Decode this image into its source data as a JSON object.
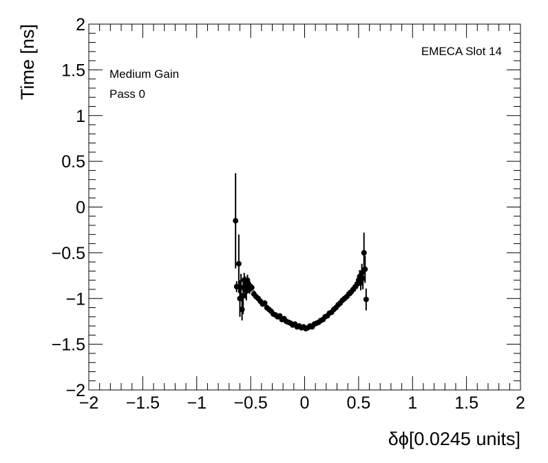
{
  "chart_data": {
    "type": "scatter",
    "xlabel": "δϕ[0.0245 units]",
    "ylabel": "Time [ns]",
    "xlim": [
      -2,
      2
    ],
    "ylim": [
      -2,
      2
    ],
    "x_ticks": [
      "−2",
      "−1.5",
      "−1",
      "−0.5",
      "0",
      "0.5",
      "1",
      "1.5",
      "2"
    ],
    "y_ticks": [
      "−2",
      "−1.5",
      "−1",
      "−0.5",
      "0",
      "0.5",
      "1",
      "1.5",
      "2"
    ],
    "x_tick_values": [
      -2,
      -1.5,
      -1,
      -0.5,
      0,
      0.5,
      1,
      1.5,
      2
    ],
    "y_tick_values": [
      -2,
      -1.5,
      -1,
      -0.5,
      0,
      0.5,
      1,
      1.5,
      2
    ],
    "grid": false,
    "annotations": {
      "top_right": "EMECA Slot 14",
      "line1": "Medium Gain",
      "line2": "Pass 0"
    },
    "marker_color": "#000000",
    "points": [
      {
        "x": -0.64,
        "y": -0.15,
        "err": 0.52
      },
      {
        "x": -0.63,
        "y": -0.87,
        "err": 0.06
      },
      {
        "x": -0.61,
        "y": -0.62,
        "err": 0.32
      },
      {
        "x": -0.6,
        "y": -1.0,
        "err": 0.2
      },
      {
        "x": -0.59,
        "y": -0.88,
        "err": 0.15
      },
      {
        "x": -0.58,
        "y": -1.12,
        "err": 0.12
      },
      {
        "x": -0.57,
        "y": -0.97,
        "err": 0.2
      },
      {
        "x": -0.56,
        "y": -0.8,
        "err": 0.08
      },
      {
        "x": -0.55,
        "y": -0.88,
        "err": 0.12
      },
      {
        "x": -0.54,
        "y": -0.92,
        "err": 0.1
      },
      {
        "x": -0.53,
        "y": -0.8,
        "err": 0.06
      },
      {
        "x": -0.52,
        "y": -0.84,
        "err": 0.05
      },
      {
        "x": -0.51,
        "y": -0.9,
        "err": 0.05
      },
      {
        "x": -0.49,
        "y": -0.88,
        "err": 0.04
      },
      {
        "x": -0.47,
        "y": -0.95,
        "err": 0.04
      },
      {
        "x": -0.45,
        "y": -0.98,
        "err": 0.03
      },
      {
        "x": -0.43,
        "y": -1.0,
        "err": 0.03
      },
      {
        "x": -0.41,
        "y": -1.03,
        "err": 0.03
      },
      {
        "x": -0.39,
        "y": -1.06,
        "err": 0.03
      },
      {
        "x": -0.37,
        "y": -1.05,
        "err": 0.03
      },
      {
        "x": -0.35,
        "y": -1.1,
        "err": 0.03
      },
      {
        "x": -0.33,
        "y": -1.12,
        "err": 0.03
      },
      {
        "x": -0.31,
        "y": -1.14,
        "err": 0.03
      },
      {
        "x": -0.29,
        "y": -1.17,
        "err": 0.02
      },
      {
        "x": -0.27,
        "y": -1.18,
        "err": 0.02
      },
      {
        "x": -0.25,
        "y": -1.2,
        "err": 0.02
      },
      {
        "x": -0.23,
        "y": -1.19,
        "err": 0.02
      },
      {
        "x": -0.21,
        "y": -1.23,
        "err": 0.02
      },
      {
        "x": -0.19,
        "y": -1.22,
        "err": 0.02
      },
      {
        "x": -0.17,
        "y": -1.25,
        "err": 0.02
      },
      {
        "x": -0.15,
        "y": -1.26,
        "err": 0.02
      },
      {
        "x": -0.13,
        "y": -1.27,
        "err": 0.02
      },
      {
        "x": -0.11,
        "y": -1.29,
        "err": 0.02
      },
      {
        "x": -0.09,
        "y": -1.28,
        "err": 0.02
      },
      {
        "x": -0.07,
        "y": -1.31,
        "err": 0.02
      },
      {
        "x": -0.05,
        "y": -1.3,
        "err": 0.02
      },
      {
        "x": -0.03,
        "y": -1.32,
        "err": 0.02
      },
      {
        "x": -0.01,
        "y": -1.31,
        "err": 0.02
      },
      {
        "x": 0.01,
        "y": -1.33,
        "err": 0.02
      },
      {
        "x": 0.03,
        "y": -1.32,
        "err": 0.02
      },
      {
        "x": 0.05,
        "y": -1.3,
        "err": 0.02
      },
      {
        "x": 0.07,
        "y": -1.31,
        "err": 0.02
      },
      {
        "x": 0.09,
        "y": -1.28,
        "err": 0.02
      },
      {
        "x": 0.11,
        "y": -1.27,
        "err": 0.02
      },
      {
        "x": 0.13,
        "y": -1.26,
        "err": 0.02
      },
      {
        "x": 0.15,
        "y": -1.24,
        "err": 0.02
      },
      {
        "x": 0.17,
        "y": -1.23,
        "err": 0.02
      },
      {
        "x": 0.19,
        "y": -1.2,
        "err": 0.02
      },
      {
        "x": 0.21,
        "y": -1.19,
        "err": 0.02
      },
      {
        "x": 0.23,
        "y": -1.16,
        "err": 0.02
      },
      {
        "x": 0.25,
        "y": -1.15,
        "err": 0.02
      },
      {
        "x": 0.27,
        "y": -1.12,
        "err": 0.02
      },
      {
        "x": 0.29,
        "y": -1.1,
        "err": 0.03
      },
      {
        "x": 0.31,
        "y": -1.07,
        "err": 0.03
      },
      {
        "x": 0.33,
        "y": -1.05,
        "err": 0.03
      },
      {
        "x": 0.35,
        "y": -1.02,
        "err": 0.03
      },
      {
        "x": 0.37,
        "y": -1.0,
        "err": 0.03
      },
      {
        "x": 0.39,
        "y": -0.98,
        "err": 0.03
      },
      {
        "x": 0.41,
        "y": -0.95,
        "err": 0.04
      },
      {
        "x": 0.43,
        "y": -0.93,
        "err": 0.04
      },
      {
        "x": 0.45,
        "y": -0.9,
        "err": 0.04
      },
      {
        "x": 0.47,
        "y": -0.87,
        "err": 0.05
      },
      {
        "x": 0.49,
        "y": -0.84,
        "err": 0.05
      },
      {
        "x": 0.5,
        "y": -0.8,
        "err": 0.06
      },
      {
        "x": 0.51,
        "y": -0.76,
        "err": 0.07
      },
      {
        "x": 0.52,
        "y": -0.83,
        "err": 0.08
      },
      {
        "x": 0.53,
        "y": -0.72,
        "err": 0.1
      },
      {
        "x": 0.54,
        "y": -0.78,
        "err": 0.12
      },
      {
        "x": 0.55,
        "y": -0.5,
        "err": 0.22
      },
      {
        "x": 0.56,
        "y": -0.68,
        "err": 0.15
      },
      {
        "x": 0.57,
        "y": -1.01,
        "err": 0.12
      }
    ]
  }
}
